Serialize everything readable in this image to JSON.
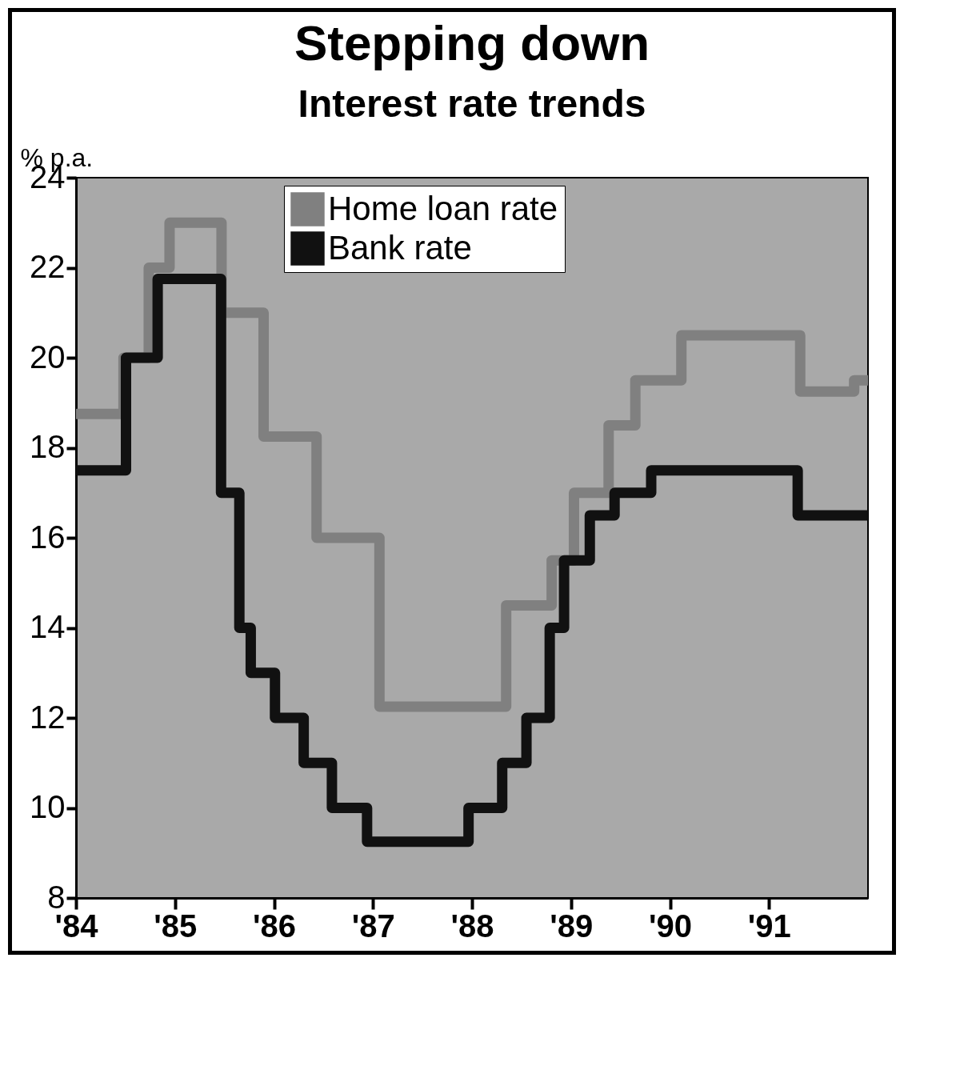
{
  "chart_data": {
    "type": "step",
    "title": "Stepping down",
    "subtitle": "Interest rate trends",
    "ylabel": "% p.a.",
    "xlim": [
      1984,
      1992
    ],
    "ylim": [
      8,
      24
    ],
    "yticks": [
      8,
      10,
      12,
      14,
      16,
      18,
      20,
      22,
      24
    ],
    "xticks": [
      {
        "value": 1984,
        "label": "'84"
      },
      {
        "value": 1985,
        "label": "'85"
      },
      {
        "value": 1986,
        "label": "'86"
      },
      {
        "value": 1987,
        "label": "'87"
      },
      {
        "value": 1988,
        "label": "'88"
      },
      {
        "value": 1989,
        "label": "'89"
      },
      {
        "value": 1990,
        "label": "'90"
      },
      {
        "value": 1991,
        "label": "'91"
      }
    ],
    "legend": "top",
    "grid": false,
    "series": [
      {
        "name": "Home loan rate",
        "color": "#808080",
        "x": [
          1984,
          1984.13,
          1984.39,
          1984.57,
          1984.69,
          1984.78,
          1984.85,
          1985.04,
          1985.35,
          1985.59,
          1985.78,
          1986.01,
          1986.3,
          1986.56,
          1986.81,
          1987.32,
          1988.11,
          1988.58,
          1988.74,
          1988.87,
          1988.96,
          1989.1,
          1989.3,
          1989.46,
          1989.58,
          1989.72,
          1989.89,
          1990.34,
          1991.07,
          1991.56,
          1991.79,
          1991.93,
          1991.97,
          1992
        ],
        "values": [
          18.75,
          18.75,
          18.75,
          20,
          20,
          22,
          22,
          23,
          23,
          21,
          21,
          18.25,
          18.25,
          16,
          16,
          12.25,
          12.25,
          14.5,
          14.5,
          15.5,
          15.5,
          17,
          17,
          18.5,
          18.5,
          19.5,
          19.5,
          20.5,
          20.5,
          19.25,
          19.25,
          19.5,
          19.5,
          19.5
        ]
      },
      {
        "name": "Bank rate",
        "color": "#111111",
        "x": [
          1984,
          1984.14,
          1984.41,
          1984.6,
          1984.7,
          1984.95,
          1985.35,
          1985.58,
          1985.62,
          1985.68,
          1985.72,
          1985.81,
          1985.94,
          1986.08,
          1986.22,
          1986.38,
          1986.52,
          1986.65,
          1986.75,
          1987.13,
          1987.78,
          1988.15,
          1988.25,
          1988.36,
          1988.49,
          1988.61,
          1988.74,
          1988.83,
          1988.88,
          1988.98,
          1989.12,
          1989.26,
          1989.39,
          1989.49,
          1989.56,
          1990.06,
          1990.99,
          1991.59,
          1991.86,
          1992
        ],
        "values": [
          17.5,
          17.5,
          17.5,
          20,
          20,
          21.75,
          21.75,
          17,
          17,
          14,
          14,
          13,
          13,
          12,
          12,
          11,
          11,
          10,
          10,
          9.25,
          9.25,
          10,
          10,
          11,
          11,
          12,
          12,
          14,
          14,
          15.5,
          15.5,
          16.5,
          16.5,
          17,
          17,
          17.5,
          17.5,
          16.5,
          16.5,
          16.5
        ]
      }
    ]
  }
}
